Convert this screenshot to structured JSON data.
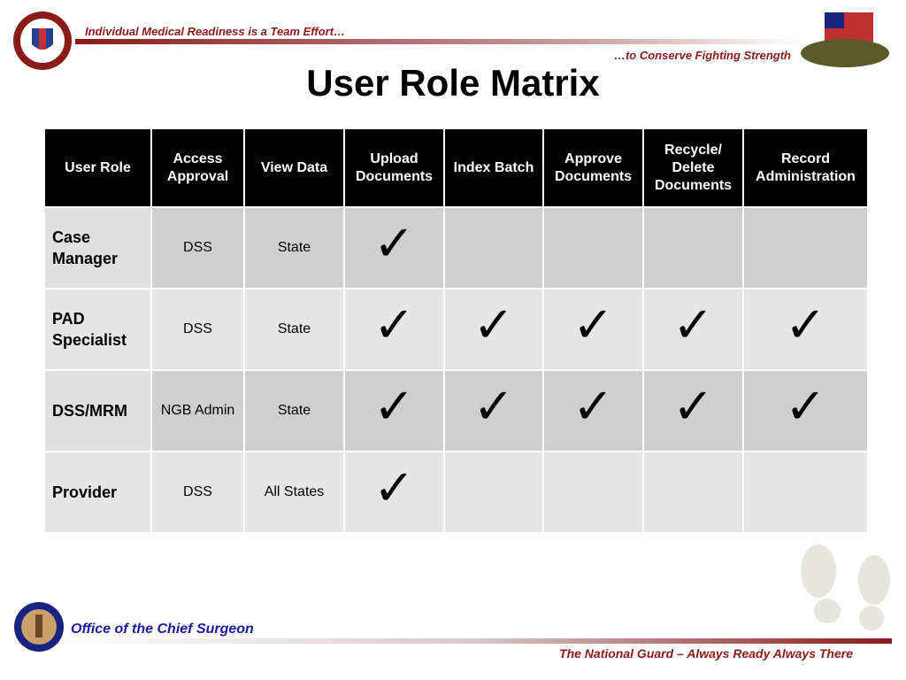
{
  "header": {
    "tagline": "Individual Medical Readiness is a Team Effort…",
    "slogan": "…to Conserve Fighting Strength",
    "title": "User Role Matrix"
  },
  "table": {
    "columns": [
      "User Role",
      "Access Approval",
      "View Data",
      "Upload Documents",
      "Index Batch",
      "Approve Documents",
      "Recycle/ Delete Documents",
      "Record Administration"
    ],
    "rows": [
      [
        "Case Manager",
        "DSS",
        "State",
        "✓",
        null,
        null,
        null,
        null
      ],
      [
        "PAD Specialist",
        "DSS",
        "State",
        "✓",
        "✓",
        "✓",
        "✓",
        "✓"
      ],
      [
        "DSS/MRM",
        "NGB Admin",
        "State",
        "✓",
        "✓",
        "✓",
        "✓",
        "✓"
      ],
      [
        "Provider",
        "DSS",
        "All States",
        "✓",
        null,
        null,
        null,
        null
      ]
    ]
  },
  "footer": {
    "office": "Office of the Chief Surgeon",
    "motto": "The National Guard – Always Ready  Always There"
  }
}
